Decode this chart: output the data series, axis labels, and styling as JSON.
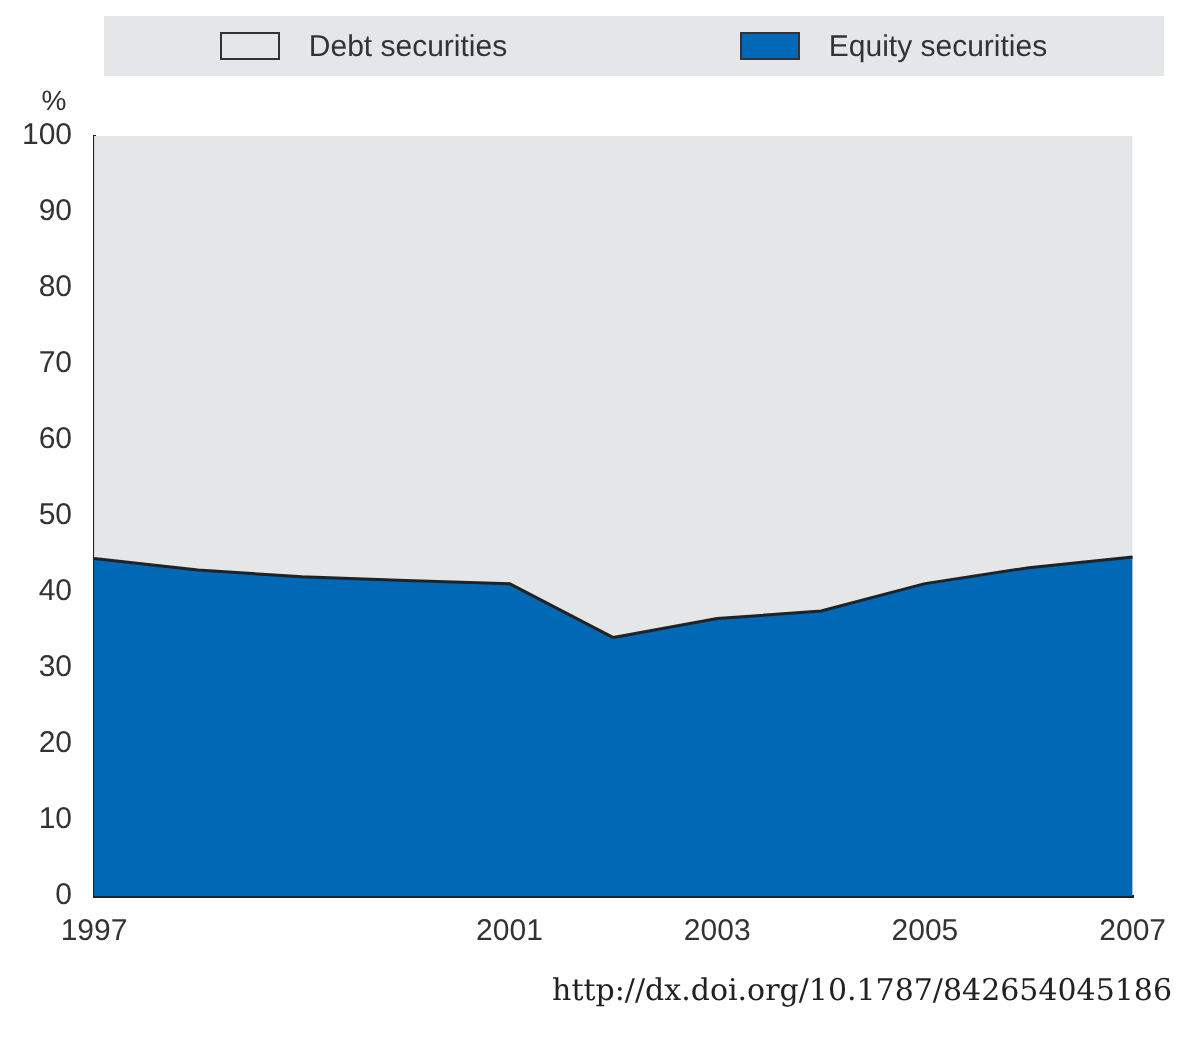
{
  "chart_data": {
    "type": "area",
    "stacked": true,
    "ylabel": "%",
    "categories": [
      "1997",
      null,
      null,
      null,
      "2001",
      null,
      "2003",
      null,
      "2005",
      null,
      "2007"
    ],
    "series": [
      {
        "name": "Equity securities",
        "color": "#0068b4",
        "values": [
          44.4,
          42.9,
          42.0,
          41.5,
          41.1,
          34.0,
          36.5,
          37.5,
          41.1,
          43.2,
          44.6
        ]
      },
      {
        "name": "Debt securities",
        "color": "#e5e6e8",
        "values": [
          55.6,
          57.1,
          58.0,
          58.5,
          58.9,
          66.0,
          63.5,
          62.5,
          58.9,
          56.8,
          55.4
        ]
      }
    ],
    "ylim": [
      0,
      100
    ],
    "yticks": [
      0,
      10,
      20,
      30,
      40,
      50,
      60,
      70,
      80,
      90,
      100
    ],
    "grid": false,
    "legend": "top",
    "annotations": [
      "http://dx.doi.org/10.1787/842654045186"
    ]
  }
}
